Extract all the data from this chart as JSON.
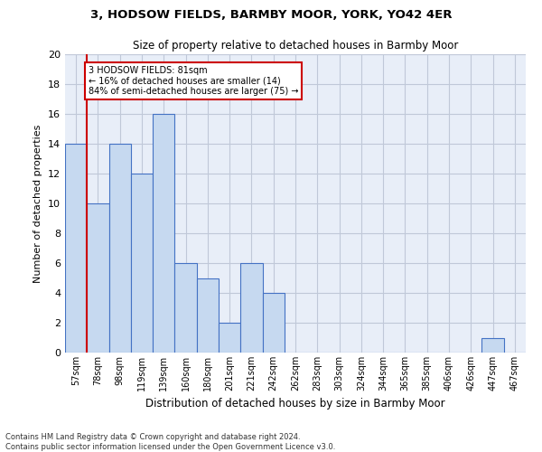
{
  "title1": "3, HODSOW FIELDS, BARMBY MOOR, YORK, YO42 4ER",
  "title2": "Size of property relative to detached houses in Barmby Moor",
  "xlabel": "Distribution of detached houses by size in Barmby Moor",
  "ylabel": "Number of detached properties",
  "categories": [
    "57sqm",
    "78sqm",
    "98sqm",
    "119sqm",
    "139sqm",
    "160sqm",
    "180sqm",
    "201sqm",
    "221sqm",
    "242sqm",
    "262sqm",
    "283sqm",
    "303sqm",
    "324sqm",
    "344sqm",
    "365sqm",
    "385sqm",
    "406sqm",
    "426sqm",
    "447sqm",
    "467sqm"
  ],
  "values": [
    14,
    10,
    14,
    12,
    16,
    6,
    5,
    2,
    6,
    4,
    0,
    0,
    0,
    0,
    0,
    0,
    0,
    0,
    0,
    1,
    0
  ],
  "bar_color": "#c6d9f0",
  "bar_edgecolor": "#4472c4",
  "bar_highlighted_index": 1,
  "highlight_line_color": "#cc0000",
  "ylim": [
    0,
    20
  ],
  "yticks": [
    0,
    2,
    4,
    6,
    8,
    10,
    12,
    14,
    16,
    18,
    20
  ],
  "annotation_box_text": "3 HODSOW FIELDS: 81sqm\n← 16% of detached houses are smaller (14)\n84% of semi-detached houses are larger (75) →",
  "annotation_box_color": "#cc0000",
  "footnote1": "Contains HM Land Registry data © Crown copyright and database right 2024.",
  "footnote2": "Contains public sector information licensed under the Open Government Licence v3.0.",
  "background_color": "#ffffff",
  "axes_background": "#e8eef8",
  "grid_color": "#c0c8d8"
}
